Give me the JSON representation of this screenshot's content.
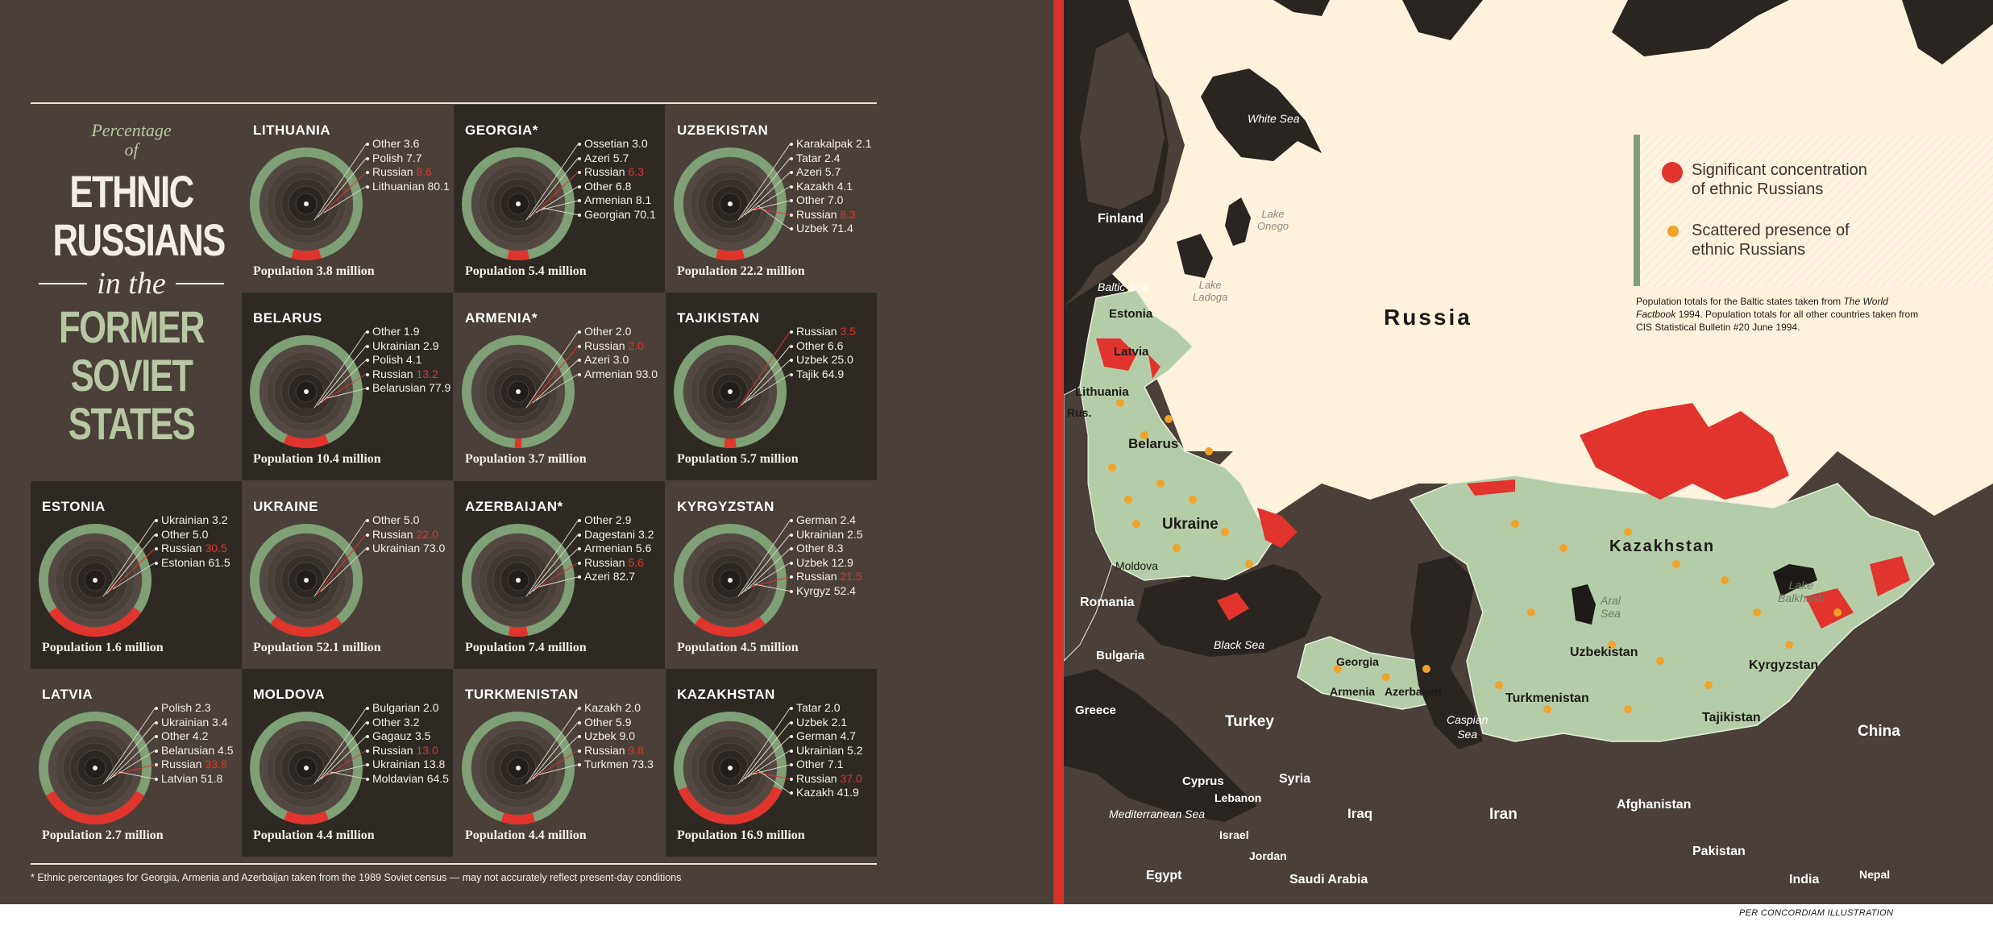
{
  "title": {
    "line1": "Percentage",
    "line2": "of",
    "line3": "ETHNIC",
    "line4": "RUSSIANS",
    "line5": "in the",
    "line6": "FORMER",
    "line7": "SOVIET",
    "line8": "STATES"
  },
  "colors": {
    "russian": "#e0342c",
    "green": "#7f9f76",
    "background": "#4a4039",
    "map_land": "#b5cca8"
  },
  "countries": [
    {
      "name": "LITHUANIA",
      "population": "Population 3.8 million",
      "russian_share": 8.6,
      "groups": [
        {
          "label": "Other",
          "value": "3.6"
        },
        {
          "label": "Polish",
          "value": "7.7"
        },
        {
          "label": "Russian",
          "value": "8.6",
          "russian": true
        },
        {
          "label": "Lithuanian",
          "value": "80.1"
        }
      ]
    },
    {
      "name": "GEORGIA*",
      "population": "Population 5.4 million",
      "russian_share": 6.3,
      "groups": [
        {
          "label": "Ossetian",
          "value": "3.0"
        },
        {
          "label": "Azeri",
          "value": "5.7"
        },
        {
          "label": "Russian",
          "value": "6.3",
          "russian": true
        },
        {
          "label": "Other",
          "value": "6.8"
        },
        {
          "label": "Armenian",
          "value": "8.1"
        },
        {
          "label": "Georgian",
          "value": "70.1"
        }
      ]
    },
    {
      "name": "UZBEKISTAN",
      "population": "Population 22.2 million",
      "russian_share": 8.3,
      "groups": [
        {
          "label": "Karakalpak",
          "value": "2.1"
        },
        {
          "label": "Tatar",
          "value": "2.4"
        },
        {
          "label": "Azeri",
          "value": "5.7"
        },
        {
          "label": "Kazakh",
          "value": "4.1"
        },
        {
          "label": "Other",
          "value": "7.0"
        },
        {
          "label": "Russian",
          "value": "8.3",
          "russian": true
        },
        {
          "label": "Uzbek",
          "value": "71.4"
        }
      ]
    },
    {
      "name": "BELARUS",
      "population": "Population 10.4 million",
      "russian_share": 13.2,
      "groups": [
        {
          "label": "Other",
          "value": "1.9"
        },
        {
          "label": "Ukrainian",
          "value": "2.9"
        },
        {
          "label": "Polish",
          "value": "4.1"
        },
        {
          "label": "Russian",
          "value": "13.2",
          "russian": true
        },
        {
          "label": "Belarusian",
          "value": "77.9"
        }
      ]
    },
    {
      "name": "ARMENIA*",
      "population": "Population 3.7 million",
      "russian_share": 2.0,
      "groups": [
        {
          "label": "Other",
          "value": "2.0"
        },
        {
          "label": "Russian",
          "value": "2.0",
          "russian": true
        },
        {
          "label": "Azeri",
          "value": "3.0"
        },
        {
          "label": "Armenian",
          "value": "93.0"
        }
      ]
    },
    {
      "name": "TAJIKISTAN",
      "population": "Population 5.7 million",
      "russian_share": 3.5,
      "groups": [
        {
          "label": "Russian",
          "value": "3.5",
          "russian": true
        },
        {
          "label": "Other",
          "value": "6.6"
        },
        {
          "label": "Uzbek",
          "value": "25.0"
        },
        {
          "label": "Tajik",
          "value": "64.9"
        }
      ]
    },
    {
      "name": "ESTONIA",
      "population": "Population 1.6 million",
      "russian_share": 30.5,
      "groups": [
        {
          "label": "Ukrainian",
          "value": "3.2"
        },
        {
          "label": "Other",
          "value": "5.0"
        },
        {
          "label": "Russian",
          "value": "30.5",
          "russian": true
        },
        {
          "label": "Estonian",
          "value": "61.5"
        }
      ]
    },
    {
      "name": "UKRAINE",
      "population": "Population 52.1 million",
      "russian_share": 22.0,
      "groups": [
        {
          "label": "Other",
          "value": "5.0"
        },
        {
          "label": "Russian",
          "value": "22.0",
          "russian": true
        },
        {
          "label": "Ukrainian",
          "value": "73.0"
        }
      ]
    },
    {
      "name": "AZERBAIJAN*",
      "population": "Population 7.4 million",
      "russian_share": 5.6,
      "groups": [
        {
          "label": "Other",
          "value": "2.9"
        },
        {
          "label": "Dagestani",
          "value": "3.2"
        },
        {
          "label": "Armenian",
          "value": "5.6"
        },
        {
          "label": "Russian",
          "value": "5.6",
          "russian": true
        },
        {
          "label": "Azeri",
          "value": "82.7"
        }
      ]
    },
    {
      "name": "KYRGYZSTAN",
      "population": "Population 4.5 million",
      "russian_share": 21.5,
      "groups": [
        {
          "label": "German",
          "value": "2.4"
        },
        {
          "label": "Ukrainian",
          "value": "2.5"
        },
        {
          "label": "Other",
          "value": "8.3"
        },
        {
          "label": "Uzbek",
          "value": "12.9"
        },
        {
          "label": "Russian",
          "value": "21.5",
          "russian": true
        },
        {
          "label": "Kyrgyz",
          "value": "52.4"
        }
      ]
    },
    {
      "name": "LATVIA",
      "population": "Population 2.7 million",
      "russian_share": 33.8,
      "groups": [
        {
          "label": "Polish",
          "value": "2.3"
        },
        {
          "label": "Ukrainian",
          "value": "3.4"
        },
        {
          "label": "Other",
          "value": "4.2"
        },
        {
          "label": "Belarusian",
          "value": "4.5"
        },
        {
          "label": "Russian",
          "value": "33.8",
          "russian": true
        },
        {
          "label": "Latvian",
          "value": "51.8"
        }
      ]
    },
    {
      "name": "MOLDOVA",
      "population": "Population 4.4 million",
      "russian_share": 13.0,
      "groups": [
        {
          "label": "Bulgarian",
          "value": "2.0"
        },
        {
          "label": "Other",
          "value": "3.2"
        },
        {
          "label": "Gagauz",
          "value": "3.5"
        },
        {
          "label": "Russian",
          "value": "13.0",
          "russian": true
        },
        {
          "label": "Ukrainian",
          "value": "13.8"
        },
        {
          "label": "Moldavian",
          "value": "64.5"
        }
      ]
    },
    {
      "name": "TURKMENISTAN",
      "population": "Population 4.4 million",
      "russian_share": 9.8,
      "groups": [
        {
          "label": "Kazakh",
          "value": "2.0"
        },
        {
          "label": "Other",
          "value": "5.9"
        },
        {
          "label": "Uzbek",
          "value": "9.0"
        },
        {
          "label": "Russian",
          "value": "9.8",
          "russian": true
        },
        {
          "label": "Turkmen",
          "value": "73.3"
        }
      ]
    },
    {
      "name": "KAZAKHSTAN",
      "population": "Population 16.9 million",
      "russian_share": 37.0,
      "groups": [
        {
          "label": "Tatar",
          "value": "2.0"
        },
        {
          "label": "Uzbek",
          "value": "2.1"
        },
        {
          "label": "German",
          "value": "4.7"
        },
        {
          "label": "Ukrainian",
          "value": "5.2"
        },
        {
          "label": "Other",
          "value": "7.1"
        },
        {
          "label": "Russian",
          "value": "37.0",
          "russian": true
        },
        {
          "label": "Kazakh",
          "value": "41.9"
        }
      ]
    }
  ],
  "footnote": "* Ethnic percentages for Georgia, Armenia and Azerbaijan taken from the 1989 Soviet census — may not accurately reflect present-day conditions",
  "map": {
    "legend": {
      "significant_l1": "Significant concentration",
      "significant_l2": "of ethnic Russians",
      "scattered_l1": "Scattered presence of",
      "scattered_l2": "ethnic Russians"
    },
    "source": {
      "part1": "Population totals for the Baltic states taken from ",
      "part2": "The World Factbook",
      "part3": " 1994. Population totals for all other countries taken from CIS Statistical Bulletin #20 June 1994."
    },
    "labels": {
      "russia": "Russia",
      "kazakhstan": "Kazakhstan",
      "white_sea": "White Sea",
      "lake_onego_1": "Lake",
      "lake_onego_2": "Onego",
      "lake_ladoga_1": "Lake",
      "lake_ladoga_2": "Ladoga",
      "finland": "Finland",
      "baltic_sea": "Baltic Sea",
      "estonia": "Estonia",
      "latvia": "Latvia",
      "lithuania": "Lithuania",
      "rus": "Rus.",
      "belarus": "Belarus",
      "ukraine": "Ukraine",
      "moldova": "Moldova",
      "romania": "Romania",
      "bulgaria": "Bulgaria",
      "greece": "Greece",
      "black_sea": "Black Sea",
      "turkey": "Turkey",
      "georgia": "Georgia",
      "armenia": "Armenia",
      "azerbaijan": "Azerbaijan",
      "caspian_1": "Caspian",
      "caspian_2": "Sea",
      "aral_1": "Aral",
      "aral_2": "Sea",
      "uzbekistan": "Uzbekistan",
      "turkmenistan": "Turkmenistan",
      "kyrgyzstan": "Kyrgyzstan",
      "tajikistan": "Tajikistan",
      "lake_balkhash_1": "Lake",
      "lake_balkhash_2": "Balkhash",
      "china": "China",
      "cyprus": "Cyprus",
      "syria": "Syria",
      "lebanon": "Lebanon",
      "mediterranean": "Mediterranean Sea",
      "israel": "Israel",
      "jordan": "Jordan",
      "iraq": "Iraq",
      "iran": "Iran",
      "egypt": "Egypt",
      "saudi_arabia": "Saudi Arabia",
      "afghanistan": "Afghanistan",
      "pakistan": "Pakistan",
      "india": "India",
      "nepal": "Nepal"
    }
  },
  "credit": "PER CONCORDIAM ILLUSTRATION"
}
